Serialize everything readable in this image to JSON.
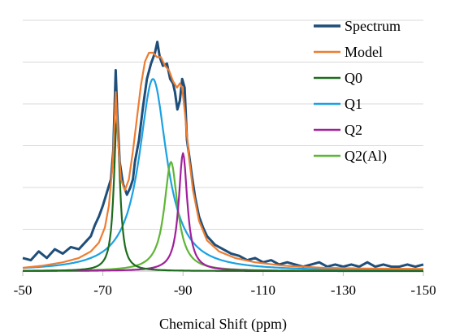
{
  "chart_data": {
    "type": "line",
    "title": "",
    "xlabel": "Chemical Shift (ppm)",
    "ylabel": "",
    "xlim": [
      -50,
      -150
    ],
    "x_reversed": true,
    "x_ticks": [
      -50,
      -70,
      -90,
      -110,
      -130,
      -150
    ],
    "ylim": [
      0,
      1
    ],
    "grid": "horizontal",
    "legend_position": "top-right",
    "series": [
      {
        "name": "Spectrum",
        "color": "#1f4e79",
        "x": [
          -50,
          -52,
          -54,
          -56,
          -58,
          -60,
          -62,
          -64,
          -66,
          -67,
          -68,
          -69,
          -70,
          -71,
          -72,
          -72.6,
          -73.2,
          -73.6,
          -74.2,
          -75,
          -76,
          -76.8,
          -77.5,
          -78,
          -79,
          -80,
          -81,
          -82,
          -83,
          -83.6,
          -84.2,
          -85,
          -86,
          -86.8,
          -87.5,
          -88,
          -88.6,
          -89.2,
          -89.8,
          -90.4,
          -91,
          -91.6,
          -92.2,
          -93,
          -94,
          -95,
          -96,
          -98,
          -100,
          -102,
          -104,
          -106,
          -108,
          -110,
          -112,
          -114,
          -116,
          -118,
          -120,
          -122,
          -124,
          -126,
          -128,
          -130,
          -132,
          -134,
          -136,
          -138,
          -140,
          -142,
          -144,
          -146,
          -148,
          -150
        ],
        "y": [
          0.06,
          0.05,
          0.09,
          0.06,
          0.1,
          0.08,
          0.11,
          0.1,
          0.14,
          0.16,
          0.21,
          0.25,
          0.3,
          0.36,
          0.42,
          0.55,
          0.92,
          0.72,
          0.5,
          0.4,
          0.35,
          0.38,
          0.42,
          0.5,
          0.6,
          0.75,
          0.88,
          0.95,
          1.0,
          1.05,
          0.98,
          0.94,
          0.95,
          0.88,
          0.86,
          0.82,
          0.74,
          0.78,
          0.88,
          0.84,
          0.6,
          0.52,
          0.44,
          0.34,
          0.25,
          0.2,
          0.16,
          0.12,
          0.1,
          0.08,
          0.07,
          0.05,
          0.06,
          0.04,
          0.05,
          0.03,
          0.04,
          0.03,
          0.02,
          0.03,
          0.04,
          0.02,
          0.03,
          0.02,
          0.03,
          0.02,
          0.04,
          0.02,
          0.03,
          0.02,
          0.02,
          0.03,
          0.02,
          0.03
        ]
      },
      {
        "name": "Model",
        "color": "#ed7d31",
        "x": [
          -50,
          -55,
          -60,
          -64,
          -67,
          -69,
          -70.5,
          -71.5,
          -72.5,
          -73.2,
          -73.8,
          -74.5,
          -75.5,
          -76.5,
          -77.5,
          -78.5,
          -79.5,
          -80.5,
          -81.5,
          -82.5,
          -83.5,
          -84.5,
          -85.5,
          -86.5,
          -87.5,
          -88.5,
          -89.2,
          -89.8,
          -90.5,
          -91.5,
          -92.5,
          -94,
          -96,
          -99,
          -103,
          -108,
          -115,
          -125,
          -135,
          -150
        ],
        "y": [
          0.015,
          0.025,
          0.04,
          0.06,
          0.09,
          0.13,
          0.2,
          0.3,
          0.5,
          0.82,
          0.6,
          0.42,
          0.37,
          0.42,
          0.55,
          0.7,
          0.85,
          0.96,
          1.0,
          1.0,
          0.98,
          0.98,
          0.94,
          0.92,
          0.87,
          0.84,
          0.86,
          0.84,
          0.72,
          0.52,
          0.37,
          0.23,
          0.14,
          0.09,
          0.06,
          0.04,
          0.025,
          0.015,
          0.012,
          0.01
        ]
      },
      {
        "name": "Q0",
        "color": "#1e6b1e",
        "center": -73.5,
        "amplitude": 0.7,
        "width": 0.9
      },
      {
        "name": "Q1",
        "color": "#1ba1e2",
        "center": -82.5,
        "amplitude": 0.88,
        "width": 4.2
      },
      {
        "name": "Q2",
        "color": "#a0209b",
        "center": -90,
        "amplitude": 0.54,
        "width": 1.3
      },
      {
        "name": "Q2(Al)",
        "color": "#5fb536",
        "center": -87,
        "amplitude": 0.5,
        "width": 2.0
      }
    ],
    "x_tick_labels": [
      "-50",
      "-70",
      "-90",
      "-110",
      "-130",
      "-150"
    ]
  }
}
